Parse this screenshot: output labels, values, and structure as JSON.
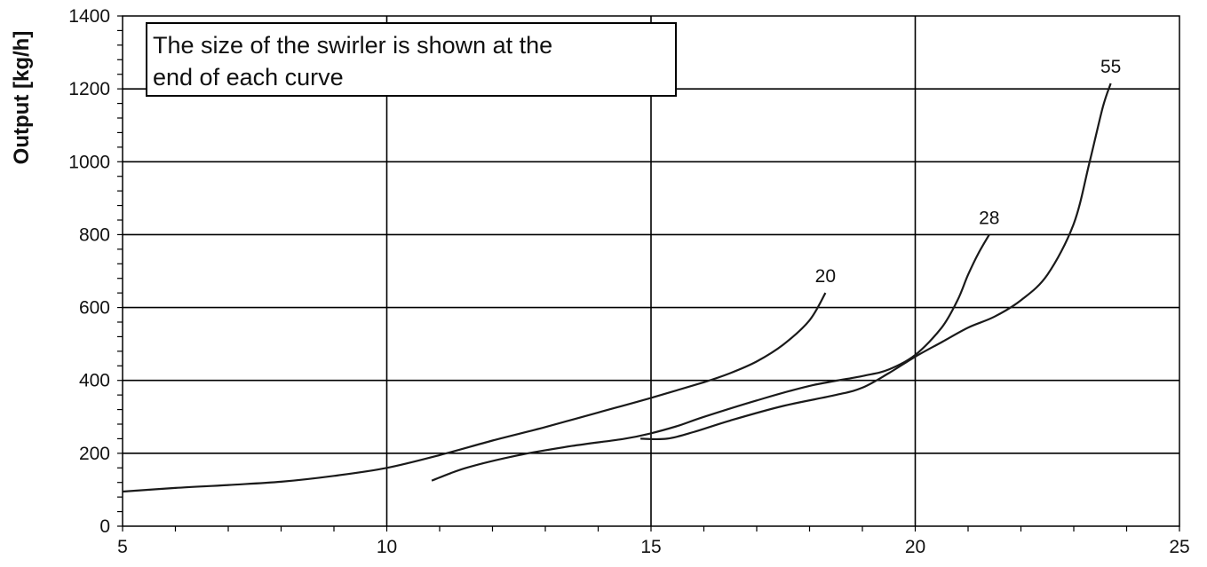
{
  "chart_data": {
    "type": "line",
    "title": "",
    "xlabel": "",
    "ylabel": "Output [kg/h]",
    "xlim": [
      5,
      25
    ],
    "ylim": [
      0,
      1400
    ],
    "x_ticks": [
      5,
      10,
      15,
      20,
      25
    ],
    "y_ticks": [
      0,
      200,
      400,
      600,
      800,
      1000,
      1200,
      1400
    ],
    "grid": true,
    "annotation": [
      "The size of the swirler is shown at the",
      "end of each curve"
    ],
    "series": [
      {
        "name": "20",
        "x": [
          5.0,
          6.0,
          7.0,
          8.0,
          9.0,
          10.0,
          11.0,
          12.0,
          13.0,
          14.0,
          15.0,
          16.0,
          16.5,
          17.0,
          17.5,
          18.0,
          18.3
        ],
        "y": [
          95,
          105,
          113,
          122,
          138,
          160,
          195,
          235,
          272,
          312,
          352,
          395,
          420,
          452,
          498,
          565,
          640
        ]
      },
      {
        "name": "28",
        "x": [
          10.85,
          11.5,
          12.5,
          13.5,
          14.5,
          15.0,
          15.5,
          16.0,
          17.0,
          18.0,
          19.0,
          19.5,
          20.0,
          20.5,
          20.8,
          21.0,
          21.2,
          21.4
        ],
        "y": [
          125,
          160,
          195,
          220,
          240,
          255,
          275,
          300,
          345,
          385,
          412,
          430,
          470,
          545,
          620,
          690,
          750,
          800
        ]
      },
      {
        "name": "55",
        "x": [
          14.8,
          15.3,
          15.8,
          16.5,
          17.5,
          18.5,
          19.0,
          19.5,
          20.0,
          20.5,
          21.0,
          21.5,
          22.0,
          22.5,
          23.0,
          23.3,
          23.55,
          23.7
        ],
        "y": [
          240,
          240,
          258,
          290,
          330,
          360,
          380,
          420,
          465,
          505,
          545,
          575,
          620,
          690,
          830,
          1000,
          1150,
          1215
        ]
      }
    ]
  }
}
